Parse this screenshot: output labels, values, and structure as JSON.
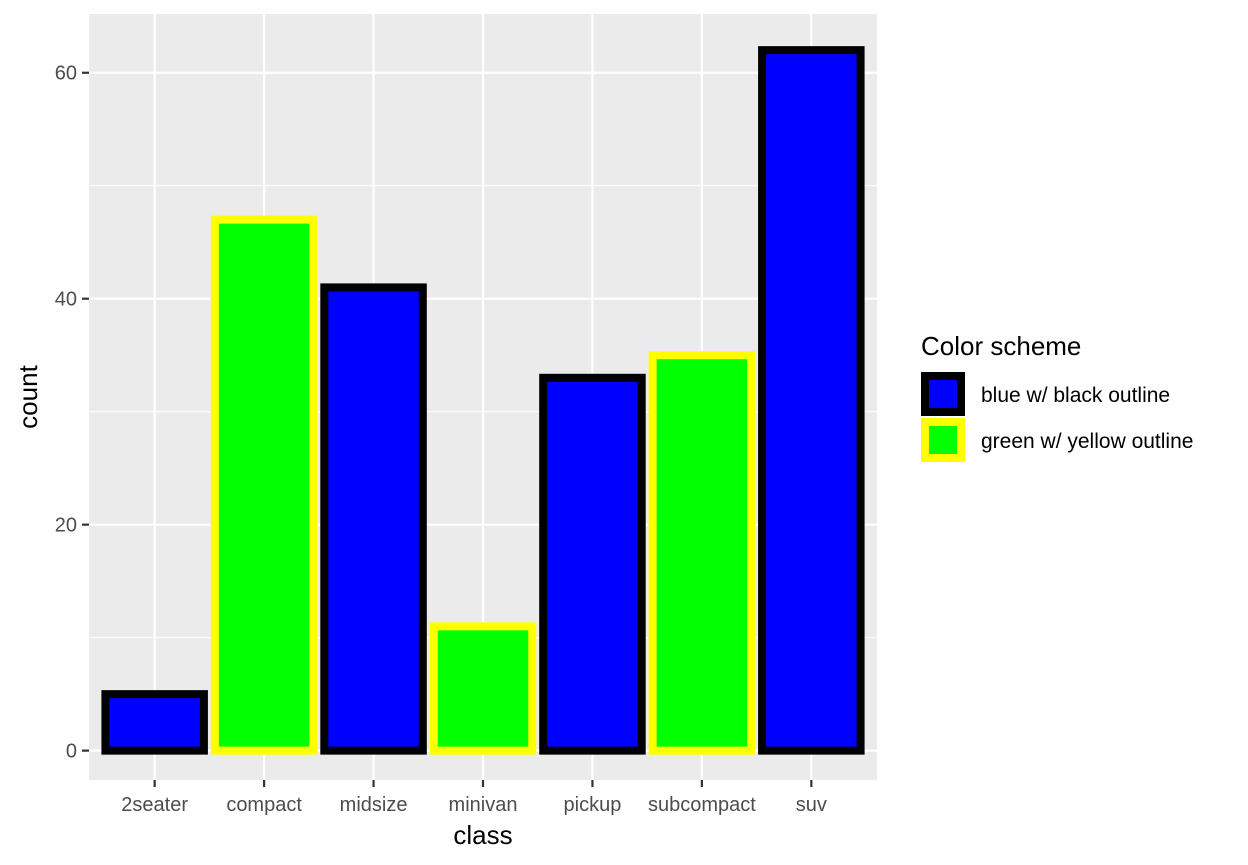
{
  "chart_data": {
    "type": "bar",
    "categories": [
      "2seater",
      "compact",
      "midsize",
      "minivan",
      "pickup",
      "subcompact",
      "suv"
    ],
    "values": [
      5,
      47,
      41,
      11,
      33,
      35,
      62
    ],
    "scheme": [
      "blue w/ black outline",
      "green w/ yellow outline",
      "blue w/ black outline",
      "green w/ yellow outline",
      "blue w/ black outline",
      "green w/ yellow outline",
      "blue w/ black outline"
    ],
    "xlabel": "class",
    "ylabel": "count",
    "ylim": [
      -2.6,
      65.2
    ],
    "yticks": [
      0,
      20,
      40,
      60
    ],
    "ytick_labels": [
      "0",
      "20",
      "40",
      "60"
    ],
    "grid": true,
    "legend": {
      "title": "Color scheme",
      "position": "right",
      "entries": [
        {
          "label": "blue w/ black outline",
          "fill": "#0000FF",
          "outline": "#000000"
        },
        {
          "label": "green w/ yellow outline",
          "fill": "#00FF00",
          "outline": "#FFFF00"
        }
      ]
    },
    "colors": {
      "panel_background": "#EBEBEB",
      "grid": "#FFFFFF"
    }
  }
}
